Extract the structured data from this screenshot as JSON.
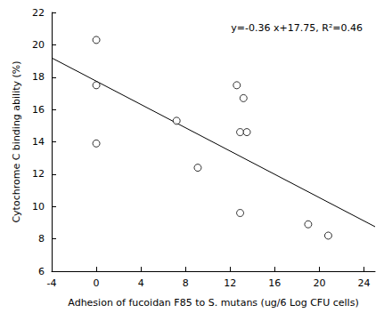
{
  "chart_data": {
    "type": "scatter",
    "x_label": "Adhesion of fucoidan F85 to S. mutans (ug/6 Log CFU cells)",
    "y_label": "Cytochrome C binding ability (%)",
    "annotation": "y=-0.36 x+17.75, R²=0.46",
    "x": [
      0,
      0,
      0,
      7.2,
      9.1,
      12.6,
      13.2,
      12.9,
      13.5,
      12.9,
      19,
      20.8
    ],
    "values": [
      20.3,
      17.5,
      13.9,
      15.3,
      12.4,
      17.5,
      16.7,
      14.6,
      14.6,
      9.6,
      8.9,
      8.2
    ],
    "color": "#000000",
    "marker": "open_circle",
    "trend_line": {
      "x": [
        -4,
        25
      ],
      "values": [
        19.19,
        8.75
      ],
      "color": "#000000",
      "line_style": "solid"
    },
    "xlim": [
      -4,
      25
    ],
    "xticks": [
      -4,
      0,
      4,
      8,
      12,
      16,
      20,
      24
    ],
    "ylim": [
      6,
      22
    ],
    "yticks": [
      6,
      8,
      10,
      12,
      14,
      16,
      18,
      20,
      22
    ],
    "grid": false
  }
}
